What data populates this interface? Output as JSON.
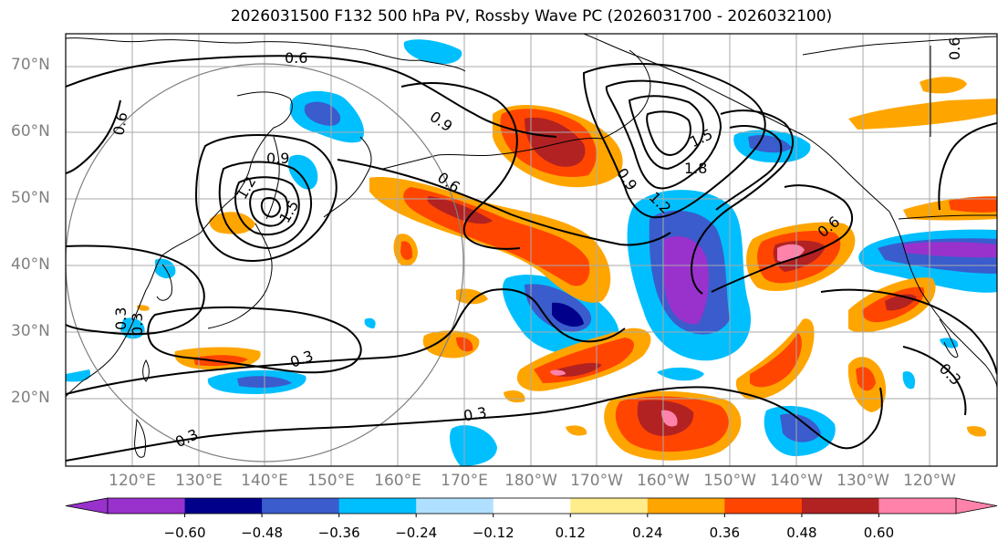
{
  "title": "2026031500 F132 500 hPa PV, Rossby Wave PC (2026031700 - 2026032100)",
  "lat_labels": [
    "70°N",
    "60°N",
    "50°N",
    "40°N",
    "30°N",
    "20°N"
  ],
  "lon_labels": [
    "120°E",
    "130°E",
    "140°E",
    "150°E",
    "160°E",
    "170°E",
    "180°W",
    "170°W",
    "160°W",
    "150°W",
    "140°W",
    "130°W",
    "120°W"
  ],
  "contour_labels": [
    "0.6",
    "0.9",
    "1.2",
    "1.5",
    "0.9",
    "0.6",
    "0.9",
    "1.2",
    "1.5",
    "1.8",
    "0.6",
    "0.3",
    "0.3",
    "0.3",
    "0.3",
    "0.6",
    "0.3",
    "0.3",
    "0.6"
  ],
  "colorbar": {
    "colors": [
      "#9932cc",
      "#00008b",
      "#3a5ccc",
      "#00bfff",
      "#b0e0ff",
      "#ffffff",
      "#ffec8b",
      "#ffa500",
      "#ff4500",
      "#b22222",
      "#ff82ab"
    ],
    "tick_labels": [
      "−0.60",
      "−0.48",
      "−0.36",
      "−0.24",
      "−0.12",
      "0.12",
      "0.24",
      "0.36",
      "0.48",
      "0.60"
    ],
    "tick_values": [
      -0.6,
      -0.48,
      -0.36,
      -0.24,
      -0.12,
      0.12,
      0.24,
      0.36,
      0.48,
      0.6
    ]
  },
  "colors": {
    "grid": "#aaaaaa",
    "coast": "#000000",
    "contour": "#000000",
    "circle": "#808080"
  }
}
